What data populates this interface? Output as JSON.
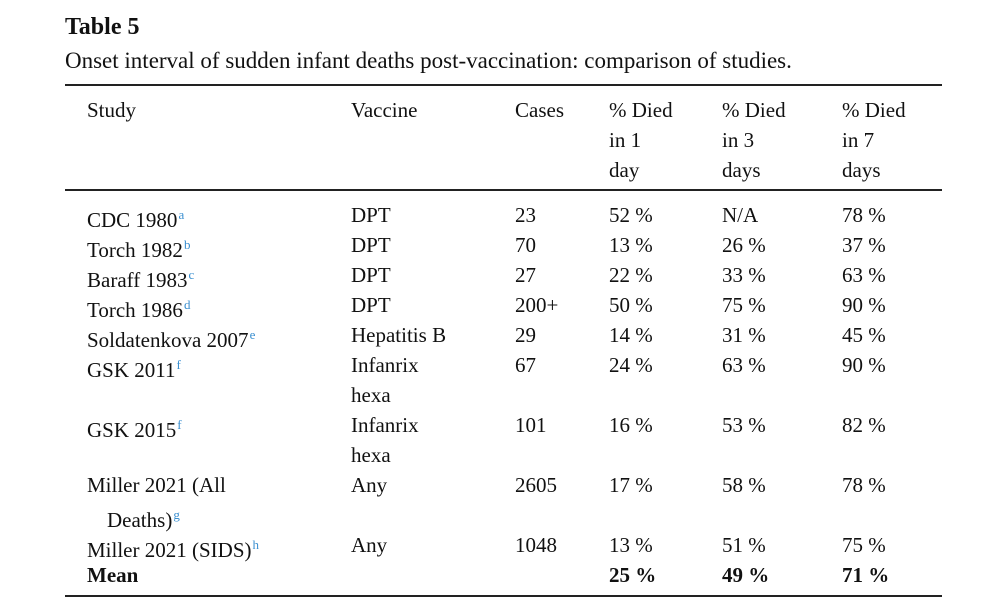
{
  "title": "Table 5",
  "caption": "Onset interval of sudden infant deaths post-vaccination: comparison of studies.",
  "table": {
    "headers": [
      [
        "Study"
      ],
      [
        "Vaccine"
      ],
      [
        "Cases"
      ],
      [
        "% Died",
        "in 1",
        "day"
      ],
      [
        "% Died",
        "in 3",
        "days"
      ],
      [
        "% Died",
        "in 7",
        "days"
      ]
    ],
    "rows": [
      {
        "study": [
          "CDC 1980"
        ],
        "note": "a",
        "vaccine": [
          "DPT"
        ],
        "cases": "23",
        "d1": "52 %",
        "d3": "N/A",
        "d7": "78 %"
      },
      {
        "study": [
          "Torch 1982"
        ],
        "note": "b",
        "vaccine": [
          "DPT"
        ],
        "cases": "70",
        "d1": "13 %",
        "d3": "26 %",
        "d7": "37 %"
      },
      {
        "study": [
          "Baraff 1983"
        ],
        "note": "c",
        "vaccine": [
          "DPT"
        ],
        "cases": "27",
        "d1": "22 %",
        "d3": "33 %",
        "d7": "63 %"
      },
      {
        "study": [
          "Torch 1986"
        ],
        "note": "d",
        "vaccine": [
          "DPT"
        ],
        "cases": "200+",
        "d1": "50 %",
        "d3": "75 %",
        "d7": "90 %"
      },
      {
        "study": [
          "Soldatenkova 2007"
        ],
        "note": "e",
        "vaccine": [
          "Hepatitis B"
        ],
        "cases": "29",
        "d1": "14 %",
        "d3": "31 %",
        "d7": "45 %"
      },
      {
        "study": [
          "GSK 2011"
        ],
        "note": "f",
        "vaccine": [
          "Infanrix",
          "hexa"
        ],
        "cases": "67",
        "d1": "24 %",
        "d3": "63 %",
        "d7": "90 %"
      },
      {
        "study": [
          "GSK 2015"
        ],
        "note": "f",
        "vaccine": [
          "Infanrix",
          "hexa"
        ],
        "cases": "101",
        "d1": "16 %",
        "d3": "53 %",
        "d7": "82 %"
      },
      {
        "study": [
          "Miller 2021 (All",
          "Deaths)"
        ],
        "note": "g",
        "vaccine": [
          "Any"
        ],
        "cases": "2605",
        "d1": "17 %",
        "d3": "58 %",
        "d7": "78 %"
      },
      {
        "study": [
          "Miller 2021 (SIDS)"
        ],
        "note": "h",
        "vaccine": [
          "Any"
        ],
        "cases": "1048",
        "d1": "13 %",
        "d3": "51 %",
        "d7": "75 %"
      },
      {
        "study": [
          "Mean"
        ],
        "d1": "25 %",
        "d3": "49 %",
        "d7": "71 %"
      }
    ]
  }
}
